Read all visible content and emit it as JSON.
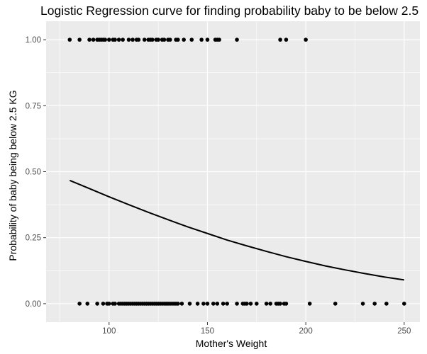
{
  "chart_data": {
    "type": "scatter",
    "title": "Logistic Regression curve for finding probability baby to be below 2.5",
    "xlabel": "Mother's Weight",
    "ylabel": "Probability of baby being below 2.5 KG",
    "xlim": [
      68,
      258
    ],
    "ylim": [
      -0.07,
      1.07
    ],
    "x_ticks": [
      100,
      150,
      200,
      250
    ],
    "y_ticks": [
      0.0,
      0.25,
      0.5,
      0.75,
      1.0
    ],
    "x_tick_labels": [
      "100",
      "150",
      "200",
      "250"
    ],
    "y_tick_labels": [
      "0.00",
      "0.25",
      "0.50",
      "0.75",
      "1.00"
    ],
    "grid": true,
    "legend": "none",
    "background": "#ebebeb",
    "grid_color": "#ffffff",
    "point_color": "#000000",
    "series": [
      {
        "kind": "points",
        "x": [
          80,
          85,
          90,
          92,
          94,
          95,
          96,
          97,
          98,
          100,
          102,
          103,
          105,
          107,
          110,
          112,
          114,
          115,
          118,
          120,
          121,
          122,
          124,
          125,
          127,
          128,
          130,
          131,
          134,
          135,
          138,
          142,
          147,
          150,
          154,
          155,
          156,
          165,
          187,
          190,
          200
        ],
        "y": [
          1,
          1,
          1,
          1,
          1,
          1,
          1,
          1,
          1,
          1,
          1,
          1,
          1,
          1,
          1,
          1,
          1,
          1,
          1,
          1,
          1,
          1,
          1,
          1,
          1,
          1,
          1,
          1,
          1,
          1,
          1,
          1,
          1,
          1,
          1,
          1,
          1,
          1,
          1,
          1,
          1
        ]
      },
      {
        "kind": "points",
        "x": [
          85,
          89,
          94,
          97,
          99,
          100,
          102,
          103,
          105,
          106,
          107,
          108,
          109,
          110,
          111,
          112,
          113,
          114,
          115,
          116,
          117,
          118,
          119,
          120,
          121,
          122,
          123,
          124,
          125,
          126,
          127,
          128,
          129,
          130,
          131,
          132,
          133,
          134,
          135,
          137,
          141,
          145,
          148,
          150,
          153,
          155,
          158,
          160,
          165,
          168,
          169,
          170,
          172,
          175,
          180,
          182,
          185,
          186,
          187,
          189,
          190,
          202,
          215,
          229,
          235,
          241,
          250
        ],
        "y": [
          0,
          0,
          0,
          0,
          0,
          0,
          0,
          0,
          0,
          0,
          0,
          0,
          0,
          0,
          0,
          0,
          0,
          0,
          0,
          0,
          0,
          0,
          0,
          0,
          0,
          0,
          0,
          0,
          0,
          0,
          0,
          0,
          0,
          0,
          0,
          0,
          0,
          0,
          0,
          0,
          0,
          0,
          0,
          0,
          0,
          0,
          0,
          0,
          0,
          0,
          0,
          0,
          0,
          0,
          0,
          0,
          0,
          0,
          0,
          0,
          0,
          0,
          0,
          0,
          0,
          0,
          0
        ]
      },
      {
        "kind": "line",
        "x": [
          80,
          90,
          100,
          110,
          120,
          130,
          140,
          150,
          160,
          170,
          180,
          190,
          200,
          210,
          220,
          230,
          240,
          250
        ],
        "y": [
          0.467,
          0.436,
          0.405,
          0.375,
          0.346,
          0.318,
          0.291,
          0.266,
          0.241,
          0.219,
          0.198,
          0.178,
          0.16,
          0.143,
          0.128,
          0.114,
          0.101,
          0.09
        ]
      }
    ]
  }
}
